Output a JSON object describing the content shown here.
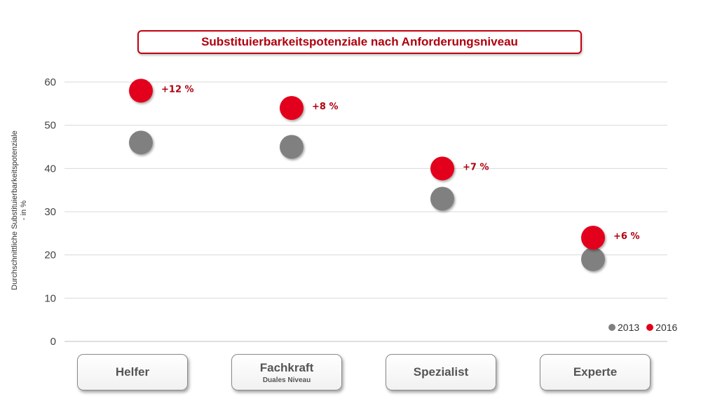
{
  "title": "Substituierbarkeitspotenziale nach Anforderungsniveau",
  "ylabel_line1": "Durchschnittliche Substituierbarkeitspotenziale",
  "ylabel_line2": "- in %",
  "colors": {
    "s2013": "#808080",
    "s2016": "#e2001a",
    "accent": "#b0000e",
    "grid": "#d9d9d9"
  },
  "categories": [
    {
      "label": "Helfer",
      "sublabel": ""
    },
    {
      "label": "Fachkraft",
      "sublabel": "Duales Niveau"
    },
    {
      "label": "Spezialist",
      "sublabel": ""
    },
    {
      "label": "Experte",
      "sublabel": ""
    }
  ],
  "legend": [
    {
      "label": "2013",
      "color": "#808080"
    },
    {
      "label": "2016",
      "color": "#e2001a"
    }
  ],
  "chart_data": {
    "type": "scatter",
    "title": "Substituierbarkeitspotenziale nach Anforderungsniveau",
    "xlabel": "",
    "ylabel": "Durchschnittliche Substituierbarkeitspotenziale - in %",
    "categories": [
      "Helfer",
      "Fachkraft",
      "Spezialist",
      "Experte"
    ],
    "ylim": [
      0,
      60
    ],
    "yticks": [
      0,
      10,
      20,
      30,
      40,
      50,
      60
    ],
    "grid": true,
    "legend_position": "bottom-right",
    "series": [
      {
        "name": "2013",
        "color": "#808080",
        "values": [
          46,
          45,
          33,
          19
        ]
      },
      {
        "name": "2016",
        "color": "#e2001a",
        "values": [
          58,
          54,
          40,
          24
        ]
      }
    ],
    "annotations": [
      "+12 %",
      "+8 %",
      "+7 %",
      "+6 %"
    ]
  }
}
